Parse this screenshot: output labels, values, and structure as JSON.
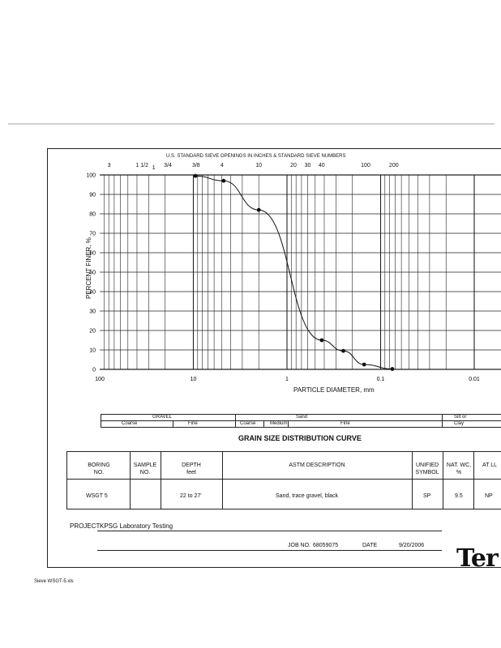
{
  "header": {
    "sieve_heading": "U.S. STANDARD SIEVE OPENINGS IN INCHES & STANDARD SIEVE NUMBERS",
    "sieve_labels": [
      "3",
      "1 1/2",
      "1",
      "3/4",
      "3/8",
      "4",
      "10",
      "20",
      "30",
      "40",
      "100",
      "200"
    ]
  },
  "chart_data": {
    "type": "line",
    "x_scale": "log",
    "x_reversed": true,
    "xlabel": "PARTICLE DIAMETER, mm",
    "ylabel": "PERCENT FINER, %",
    "xlim": [
      100,
      0.01
    ],
    "ylim": [
      0,
      100
    ],
    "x_ticks": [
      "100",
      "10",
      "1",
      "0.1",
      "0.01"
    ],
    "y_ticks": [
      "100",
      "90",
      "80",
      "70",
      "60",
      "50",
      "40",
      "30",
      "20",
      "10",
      "0"
    ],
    "grid": true,
    "x": [
      9.5,
      4.75,
      2.0,
      0.425,
      0.25,
      0.15,
      0.075
    ],
    "y": [
      99.5,
      97,
      82,
      15,
      9.5,
      2.5,
      0.2
    ]
  },
  "classification": {
    "row1": [
      "GRAVEL",
      "Sand",
      "Silt or"
    ],
    "row2": [
      "Coarse",
      "Fine",
      "Coarse",
      "Medium",
      "Fine",
      "Clay"
    ]
  },
  "curve_title": "GRAIN SIZE DISTRIBUTION CURVE",
  "table": {
    "headers": [
      "BORING NO.",
      "SAMPLE NO.",
      "DEPTH feet",
      "ASTM DESCRIPTION",
      "UNIFIED SYMBOL",
      "NAT. WC, %",
      "AT LL"
    ],
    "row": [
      "WSGT 5",
      "",
      "22 to 27'",
      "Sand, trace gravel, black",
      "SP",
      "9.5",
      "NP"
    ]
  },
  "footer": {
    "project_label": "PROJECT",
    "project_value": "KPSG Laboratory Testing",
    "job_label": "JOB NO.",
    "job_value": "68059075",
    "date_label": "DATE",
    "date_value": "9/20/2006",
    "logo_text": "Ter",
    "file_note": "Sieve WSGT-5.xls"
  }
}
